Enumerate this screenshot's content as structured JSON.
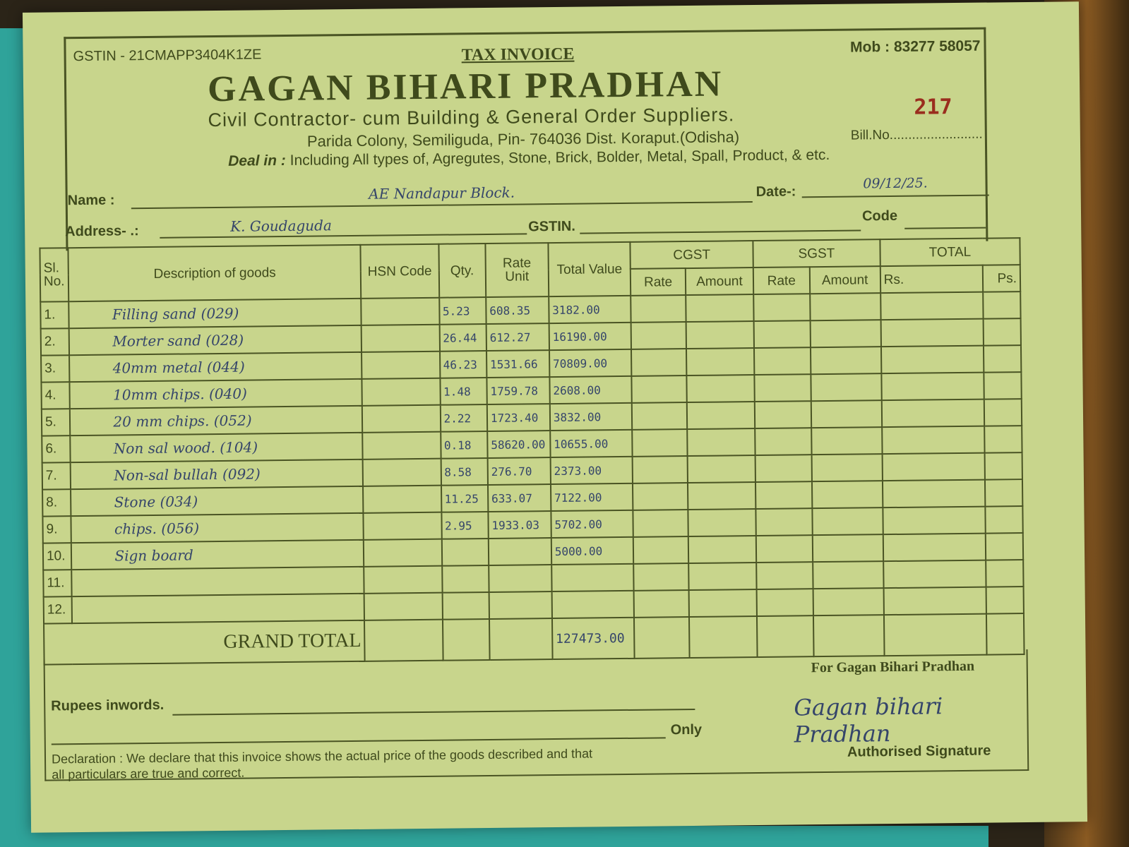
{
  "header": {
    "gstin": "GSTIN - 21CMAPP3404K1ZE",
    "doc_type": "TAX INVOICE",
    "mobile": "Mob : 83277 58057",
    "firm_name": "GAGAN BIHARI PRADHAN",
    "subtitle": "Civil Contractor- cum Building & General Order Suppliers.",
    "address": "Parida Colony, Semiliguda, Pin- 764036 Dist. Koraput.(Odisha)",
    "deal_label": "Deal in :",
    "deal_text": "Including All types of,  Agregutes, Stone, Brick, Bolder, Metal, Spall, Product, & etc.",
    "bill_no_label": "Bill.No.",
    "bill_no": "217"
  },
  "customer": {
    "name_label": "Name  :",
    "name": "AE Nandapur Block.",
    "date_label": "Date-:",
    "date": "09/12/25.",
    "address_label": "Address- .:",
    "address": "K. Goudaguda",
    "gstin_label": "GSTIN.",
    "code_label": "Code"
  },
  "table": {
    "headers": {
      "sl": "Sl. No.",
      "description": "Description of goods",
      "hsn": "HSN Code",
      "qty": "Qty.",
      "rate": "Rate Unit",
      "total_value": "Total Value",
      "cgst": "CGST",
      "sgst": "SGST",
      "total": "TOTAL",
      "rate_sub": "Rate",
      "amount_sub": "Amount",
      "rs": "Rs.",
      "ps": "Ps."
    },
    "rows": [
      {
        "sl": "1.",
        "description": "Filling sand (029)",
        "qty": "5.23",
        "rate": "608.35",
        "total": "3182.00"
      },
      {
        "sl": "2.",
        "description": "Morter sand (028)",
        "qty": "26.44",
        "rate": "612.27",
        "total": "16190.00"
      },
      {
        "sl": "3.",
        "description": "40mm metal (044)",
        "qty": "46.23",
        "rate": "1531.66",
        "total": "70809.00"
      },
      {
        "sl": "4.",
        "description": "10mm chips. (040)",
        "qty": "1.48",
        "rate": "1759.78",
        "total": "2608.00"
      },
      {
        "sl": "5.",
        "description": "20 mm chips. (052)",
        "qty": "2.22",
        "rate": "1723.40",
        "total": "3832.00"
      },
      {
        "sl": "6.",
        "description": "Non sal wood. (104)",
        "qty": "0.18",
        "rate": "58620.00",
        "total": "10655.00"
      },
      {
        "sl": "7.",
        "description": "Non-sal bullah (092)",
        "qty": "8.58",
        "rate": "276.70",
        "total": "2373.00"
      },
      {
        "sl": "8.",
        "description": "Stone (034)",
        "qty": "11.25",
        "rate": "633.07",
        "total": "7122.00"
      },
      {
        "sl": "9.",
        "description": "chips. (056)",
        "qty": "2.95",
        "rate": "1933.03",
        "total": "5702.00"
      },
      {
        "sl": "10.",
        "description": "Sign board",
        "qty": "",
        "rate": "",
        "total": "5000.00"
      },
      {
        "sl": "11.",
        "description": "",
        "qty": "",
        "rate": "",
        "total": ""
      },
      {
        "sl": "12.",
        "description": "",
        "qty": "",
        "rate": "",
        "total": ""
      }
    ],
    "grand_total_label": "GRAND TOTAL",
    "grand_total": "127473.00"
  },
  "footer": {
    "rupees_label": "Rupees inwords.",
    "only_label": "Only",
    "declaration": "Declaration : We declare that this invoice shows the actual price of the goods described and that all particulars are true and correct.",
    "for_firm": "For Gagan Bihari Pradhan",
    "signature": "Gagan bihari Pradhan",
    "authorised": "Authorised Signature"
  }
}
